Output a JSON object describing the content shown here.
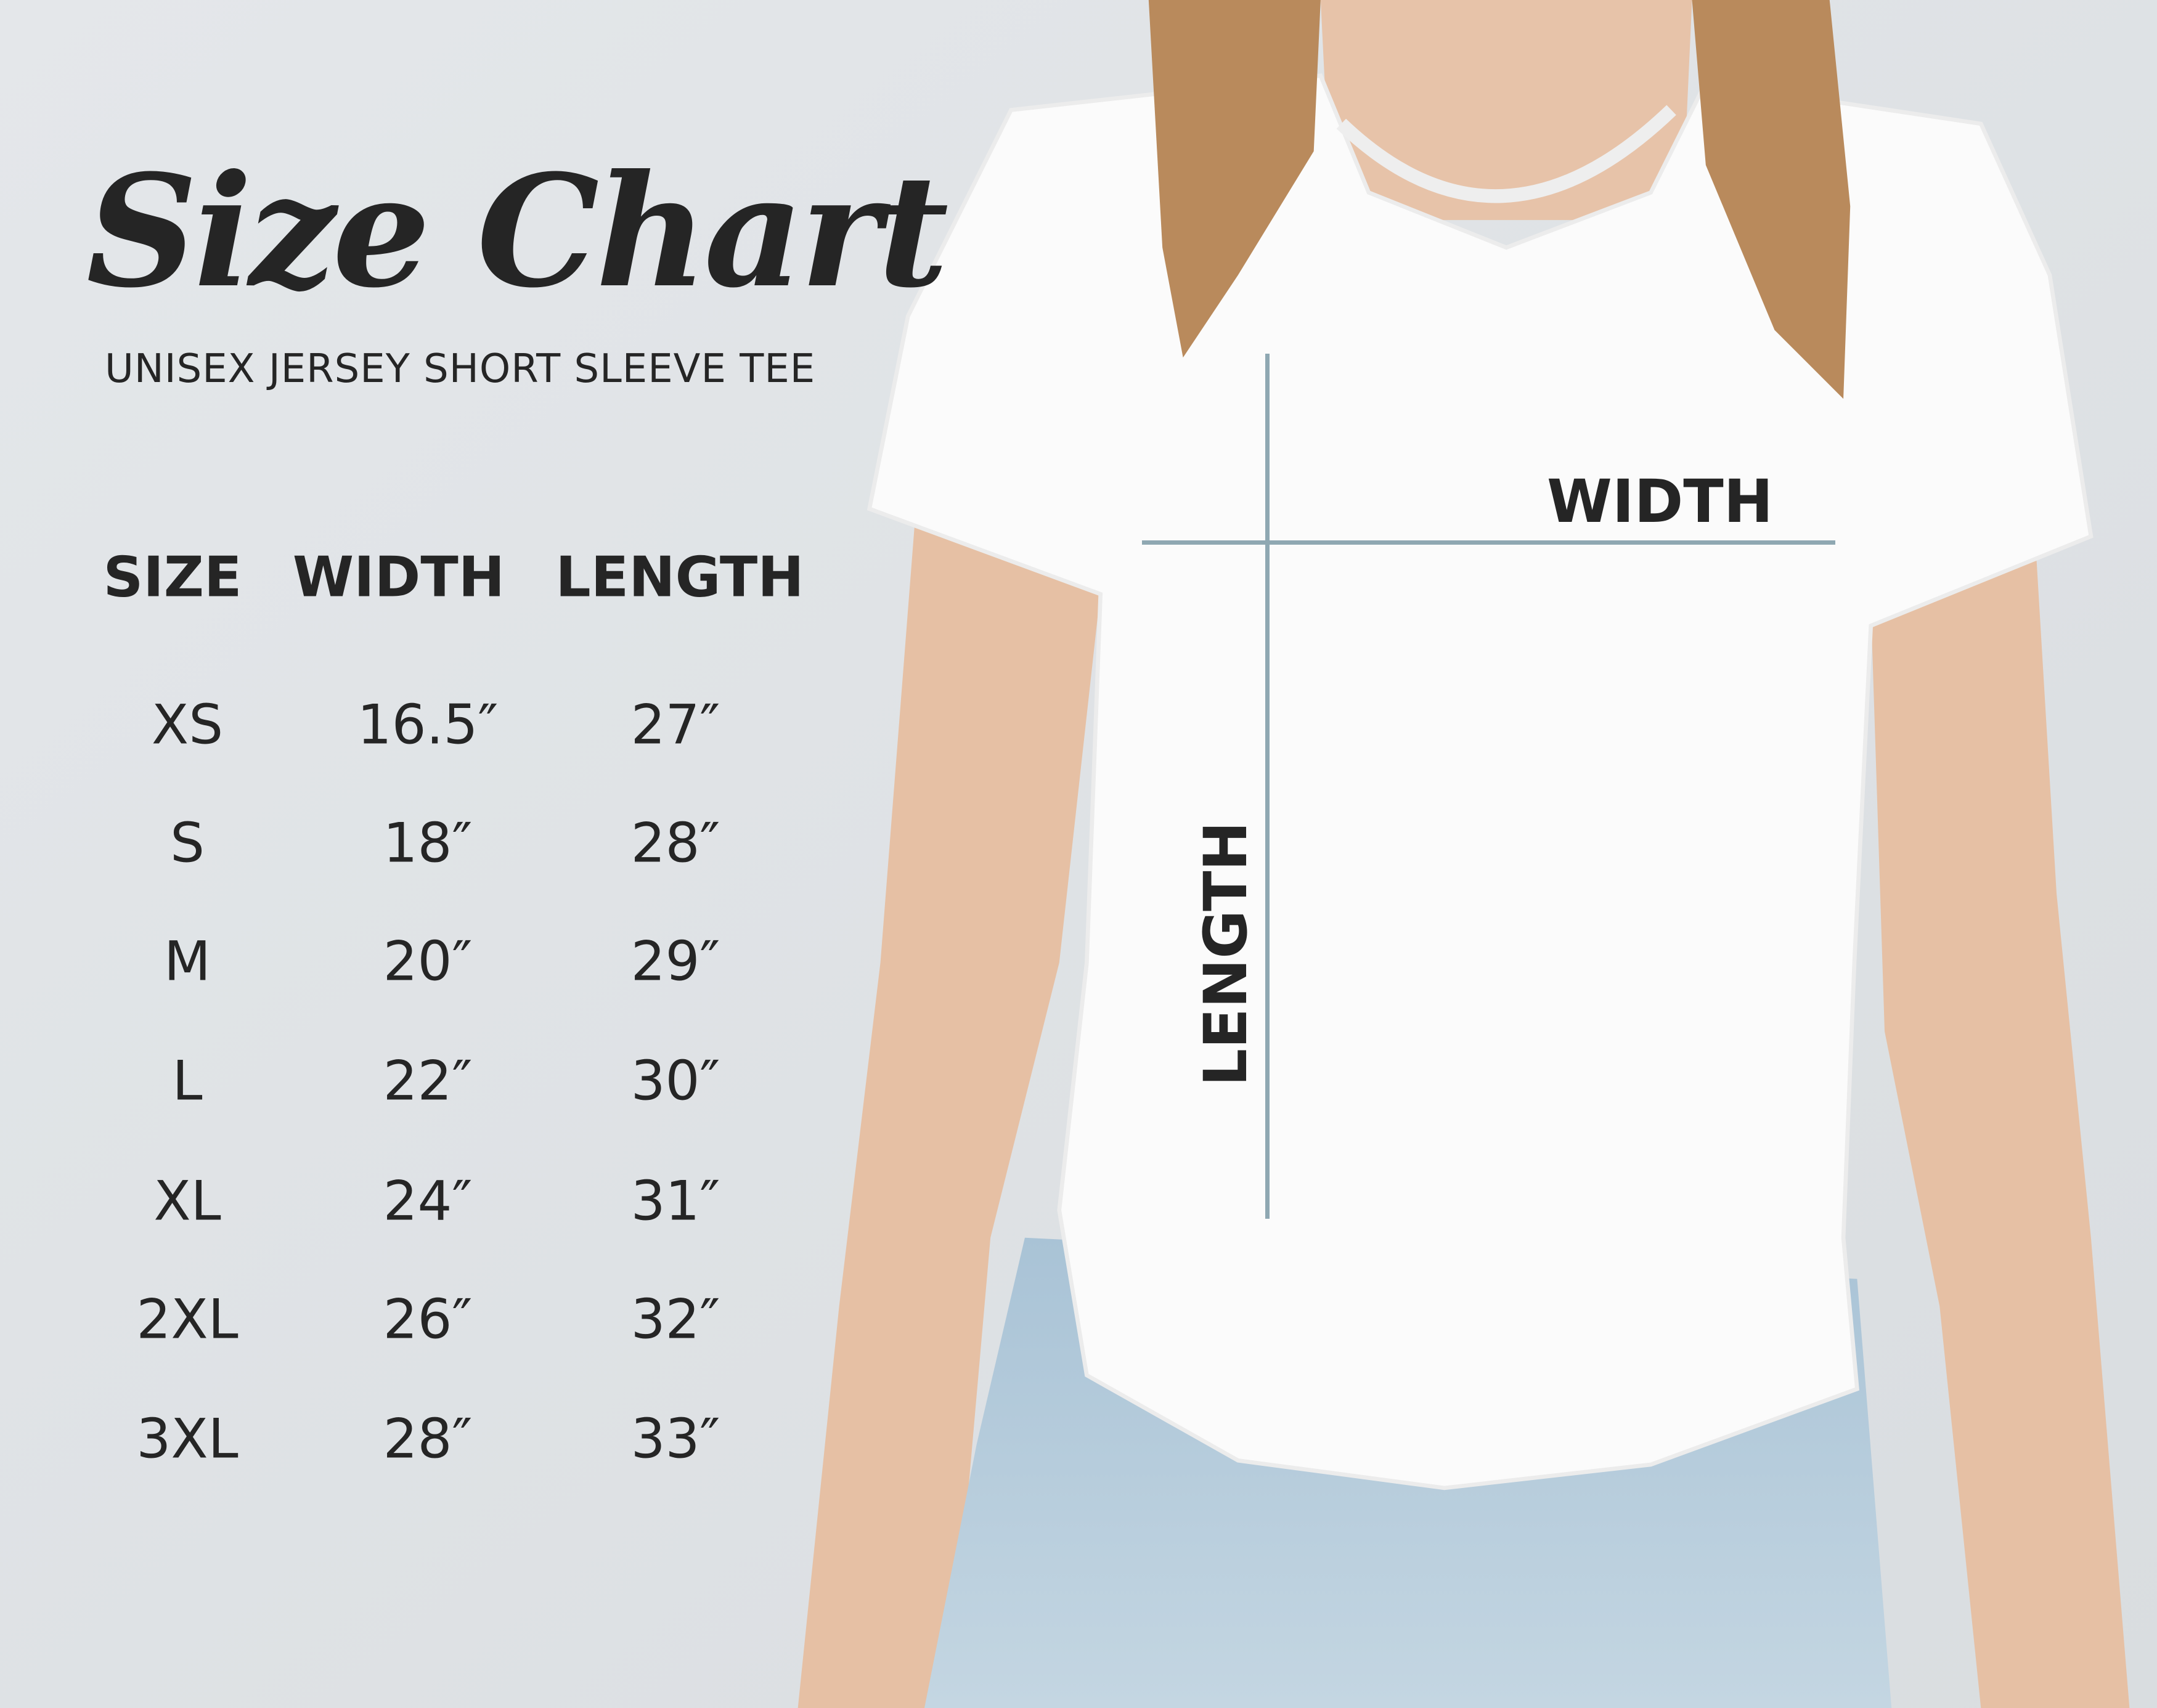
{
  "title": "Size Chart",
  "subtitle": "UNISEX JERSEY SHORT SLEEVE TEE",
  "table": {
    "headers": [
      "SIZE",
      "WIDTH",
      "LENGTH"
    ],
    "rows": [
      [
        "XS",
        "16.5″",
        "27″"
      ],
      [
        "S",
        "18″",
        "28″"
      ],
      [
        "M",
        "20″",
        "29″"
      ],
      [
        "L",
        "22″",
        "30″"
      ],
      [
        "XL",
        "24″",
        "31″"
      ],
      [
        "2XL",
        "26″",
        "32″"
      ],
      [
        "3XL",
        "28″",
        "33″"
      ]
    ]
  },
  "diagram": {
    "width_label": "WIDTH",
    "length_label": "LENGTH",
    "line_color": "#8fa8b2"
  }
}
